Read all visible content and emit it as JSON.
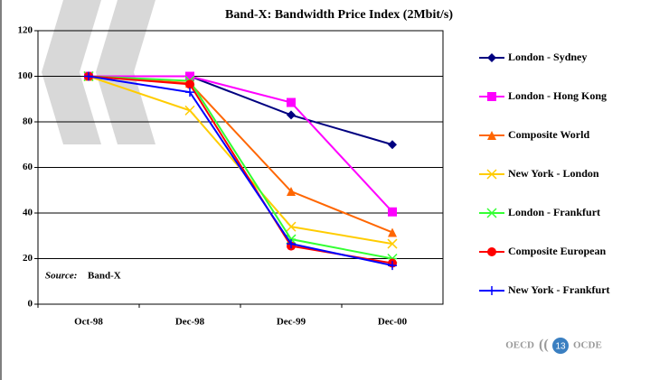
{
  "chart_data": {
    "type": "line",
    "title": "Band-X: Bandwidth Price Index (2Mbit/s)",
    "categories": [
      "Oct-98",
      "Dec-98",
      "Dec-99",
      "Dec-00"
    ],
    "series": [
      {
        "name": "London - Sydney",
        "color": "#000080",
        "marker": "diamond",
        "values": [
          100,
          100,
          83,
          70
        ]
      },
      {
        "name": "London - Hong Kong",
        "color": "#ff00ff",
        "marker": "square",
        "values": [
          100,
          100,
          88.5,
          40.5
        ]
      },
      {
        "name": "Composite World",
        "color": "#ff6600",
        "marker": "triangle",
        "values": [
          100,
          97,
          49.5,
          31.5
        ]
      },
      {
        "name": "New York - London",
        "color": "#ffcc00",
        "marker": "x",
        "values": [
          100,
          85,
          34,
          26.5
        ]
      },
      {
        "name": "London - Frankfurt",
        "color": "#33ff33",
        "marker": "asterisk",
        "values": [
          100,
          98,
          28.5,
          20
        ]
      },
      {
        "name": "Composite European",
        "color": "#ff0000",
        "marker": "circle",
        "values": [
          100,
          96.5,
          25.5,
          18
        ]
      },
      {
        "name": "New York - Frankfurt",
        "color": "#0000ff",
        "marker": "plus",
        "values": [
          100,
          93,
          26.5,
          17
        ]
      }
    ],
    "ylim": [
      0,
      120
    ],
    "yticks": [
      0,
      20,
      40,
      60,
      80,
      100,
      120
    ],
    "grid": true,
    "legend": "right",
    "annotation": {
      "label": "Source:",
      "text": "Band-X"
    },
    "footer": {
      "left": "OECD",
      "page": "13",
      "right": "OCDE"
    }
  }
}
